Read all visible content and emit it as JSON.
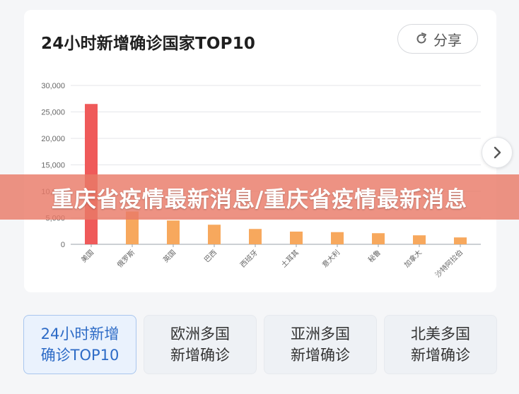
{
  "card": {
    "title": "24小时新增确诊国家TOP10",
    "share_label": "分享"
  },
  "banner": {
    "text": "重庆省疫情最新消息/重庆省疫情最新消息"
  },
  "tabs": [
    {
      "line1": "24小时新增",
      "line2": "确诊TOP10",
      "active": true
    },
    {
      "line1": "欧洲多国",
      "line2": "新增确诊",
      "active": false
    },
    {
      "line1": "亚洲多国",
      "line2": "新增确诊",
      "active": false
    },
    {
      "line1": "北美多国",
      "line2": "新增确诊",
      "active": false
    }
  ],
  "colors": {
    "first_bar": "#ef5a5a",
    "other_bars": "#f7a85d",
    "grid": "#e4e6ea",
    "tick": "#666666"
  },
  "chart_data": {
    "type": "bar",
    "categories": [
      "美国",
      "俄罗斯",
      "英国",
      "巴西",
      "西班牙",
      "土耳其",
      "意大利",
      "秘鲁",
      "加拿大",
      "沙特阿拉伯"
    ],
    "values": [
      26500,
      6200,
      4500,
      3700,
      2900,
      2400,
      2300,
      2100,
      1700,
      1300
    ],
    "yticks": [
      "0",
      "5,000",
      "10,000",
      "15,000",
      "20,000",
      "25,000",
      "30,000"
    ],
    "ylim": [
      0,
      30000
    ],
    "grid": true,
    "title": "24小时新增确诊国家TOP10",
    "xlabel": "",
    "ylabel": ""
  }
}
